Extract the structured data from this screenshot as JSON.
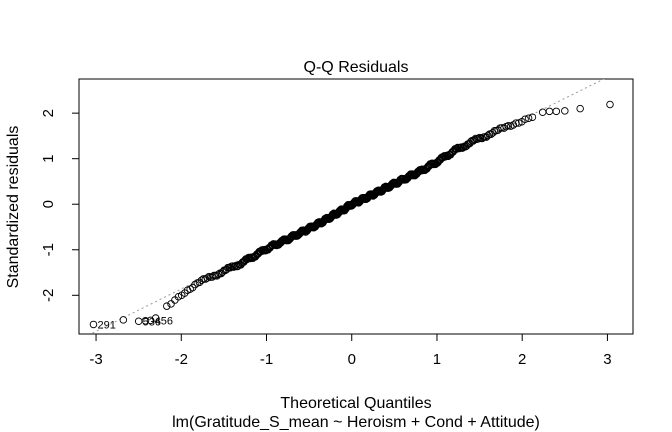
{
  "chart_data": {
    "type": "scatter",
    "title": "Q-Q Residuals",
    "xlabel": "Theoretical Quantiles",
    "ylabel": "Standardized residuals",
    "subtitle": "lm(Gratitude_S_mean ~ Heroism + Cond + Attitude)",
    "xlim": [
      -3.2,
      3.3
    ],
    "ylim": [
      -2.85,
      2.75
    ],
    "xticks": [
      -3,
      -2,
      -1,
      0,
      1,
      2,
      3
    ],
    "yticks": [
      -2,
      -1,
      0,
      1,
      2
    ],
    "grid": false,
    "legend": "none",
    "reference_line": {
      "intercept": 0.0,
      "slope": 0.93
    },
    "point_count": 500,
    "tail_points": [
      {
        "x": -3.03,
        "y": -2.64
      },
      {
        "x": -2.68,
        "y": -2.54
      },
      {
        "x": -2.5,
        "y": -2.57
      },
      {
        "x": -2.42,
        "y": -2.56
      },
      {
        "x": -2.36,
        "y": -2.55
      },
      {
        "x": -2.3,
        "y": -2.5
      },
      {
        "x": 2.24,
        "y": 2.02
      },
      {
        "x": 2.32,
        "y": 2.04
      },
      {
        "x": 2.4,
        "y": 2.04
      },
      {
        "x": 2.5,
        "y": 2.05
      },
      {
        "x": 2.68,
        "y": 2.1
      },
      {
        "x": 3.03,
        "y": 2.19
      }
    ],
    "body_anchors": [
      [
        -2.2,
        -2.3
      ],
      [
        -2.0,
        -1.97
      ],
      [
        -1.8,
        -1.73
      ],
      [
        -1.6,
        -1.55
      ],
      [
        -1.3,
        -1.3
      ],
      [
        -1.0,
        -0.98
      ],
      [
        -0.7,
        -0.72
      ],
      [
        -0.4,
        -0.44
      ],
      [
        -0.1,
        -0.12
      ],
      [
        0.0,
        0.0
      ],
      [
        0.2,
        0.17
      ],
      [
        0.5,
        0.45
      ],
      [
        0.8,
        0.72
      ],
      [
        1.0,
        0.93
      ],
      [
        1.2,
        1.17
      ],
      [
        1.5,
        1.45
      ],
      [
        1.8,
        1.68
      ],
      [
        2.0,
        1.85
      ],
      [
        2.15,
        1.95
      ]
    ],
    "point_labels": [
      {
        "text": "291",
        "x": -3.03,
        "y": -2.64
      },
      {
        "text": "536",
        "x": -2.5,
        "y": -2.57
      },
      {
        "text": "456",
        "x": -2.36,
        "y": -2.55
      }
    ],
    "colors": {
      "points": "#000000",
      "reference_line": "#9a9a9a",
      "axes": "#000000"
    }
  }
}
